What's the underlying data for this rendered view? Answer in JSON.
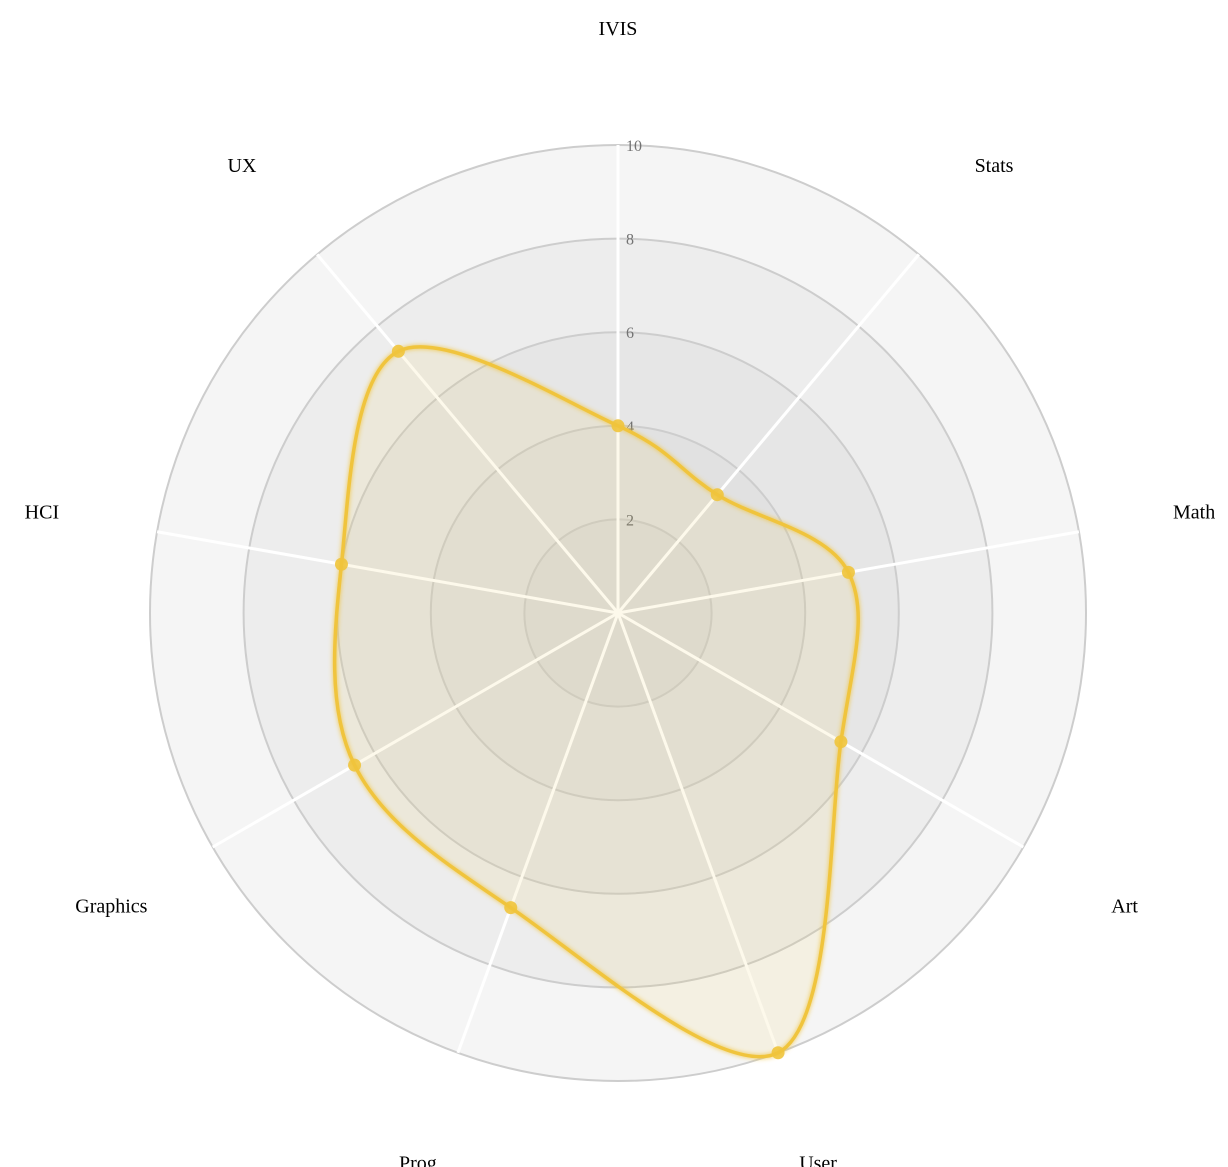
{
  "chart_data": {
    "type": "radar",
    "axes": [
      "IVIS",
      "Stats",
      "Math",
      "Art",
      "User",
      "Prog",
      "Graphics",
      "HCI",
      "UX"
    ],
    "series": [
      {
        "values": [
          4,
          3.3,
          5,
          5.5,
          10,
          6.7,
          6.5,
          6,
          7.3
        ],
        "color": "#f0c43c"
      }
    ],
    "rlim": [
      0,
      10
    ],
    "ticks": [
      "2",
      "4",
      "6",
      "8",
      "10"
    ],
    "tick_values": [
      2,
      4,
      6,
      8,
      10
    ],
    "ring_fill": "#cdcdcd",
    "ring_stroke": "#cdcdcd",
    "spoke_color": "#ffffff",
    "grid": true,
    "curve": "cardinal-closed"
  }
}
